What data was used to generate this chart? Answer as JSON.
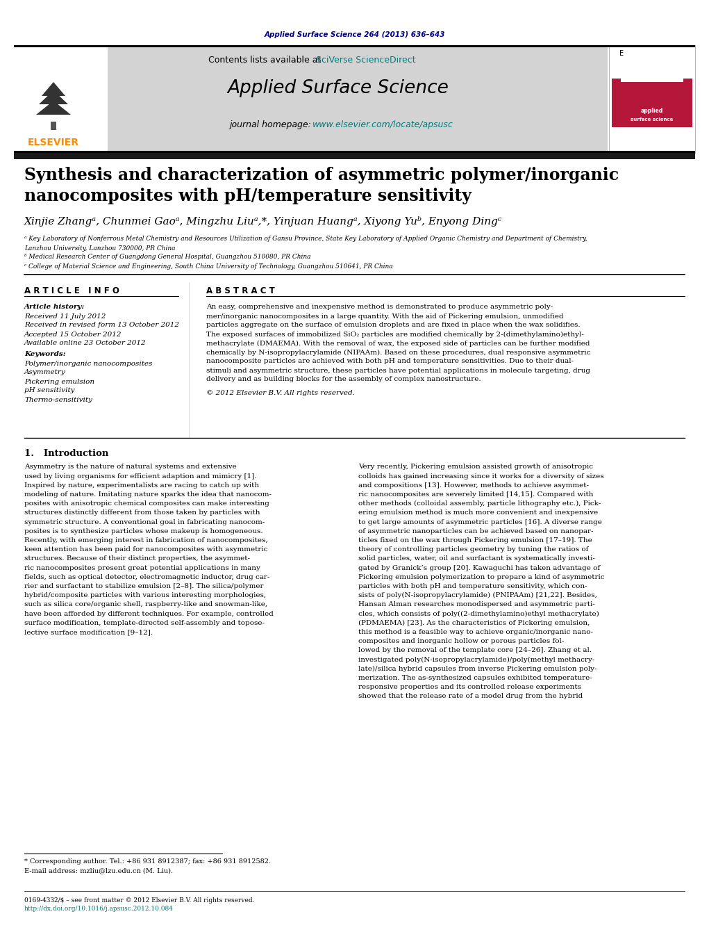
{
  "page_bg": "#ffffff",
  "top_citation": "Applied Surface Science 264 (2013) 636–643",
  "top_citation_color": "#00008B",
  "header_bg": "#d3d3d3",
  "contents_text": "Contents lists available at ",
  "sciverse_text": "SciVerse ScienceDirect",
  "sciverse_color": "#007b7b",
  "journal_title": "Applied Surface Science",
  "journal_homepage_prefix": "journal homepage: ",
  "journal_url": "www.elsevier.com/locate/apsusc",
  "journal_url_color": "#007b7b",
  "article_title_line1": "Synthesis and characterization of asymmetric polymer/inorganic",
  "article_title_line2": "nanocomposites with pH/temperature sensitivity",
  "authors": "Xinjie Zhangᵃ, Chunmei Gaoᵃ, Mingzhu Liuᵃ,*, Yinjuan Huangᵃ, Xiyong Yuᵇ, Enyong Dingᶜ",
  "affil_a": "ᵃ Key Laboratory of Nonferrous Metal Chemistry and Resources Utilization of Gansu Province, State Key Laboratory of Applied Organic Chemistry and Department of Chemistry,",
  "affil_a2": "Lanzhou University, Lanzhou 730000, PR China",
  "affil_b": "ᵇ Medical Research Center of Guangdong General Hospital, Guangzhou 510080, PR China",
  "affil_c": "ᶜ College of Material Science and Engineering, South China University of Technology, Guangzhou 510641, PR China",
  "article_info_title": "A R T I C L E   I N F O",
  "abstract_title": "A B S T R A C T",
  "article_history_label": "Article history:",
  "received": "Received 11 July 2012",
  "received_revised": "Received in revised form 13 October 2012",
  "accepted": "Accepted 15 October 2012",
  "available": "Available online 23 October 2012",
  "keywords_label": "Keywords:",
  "keyword1": "Polymer/inorganic nanocomposites",
  "keyword2": "Asymmetry",
  "keyword3": "Pickering emulsion",
  "keyword4": "pH sensitivity",
  "keyword5": "Thermo-sensitivity",
  "copyright": "© 2012 Elsevier B.V. All rights reserved.",
  "intro_title": "1.   Introduction",
  "footnote_star": "* Corresponding author. Tel.: +86 931 8912387; fax: +86 931 8912582.",
  "footnote_email": "E-mail address: mzliu@lzu.edu.cn (M. Liu).",
  "issn_line": "0169-4332/$ – see front matter © 2012 Elsevier B.V. All rights reserved.",
  "doi_line": "http://dx.doi.org/10.1016/j.apsusc.2012.10.084",
  "elsevier_color": "#FF8C00",
  "dark_bar_color": "#1a1a1a",
  "abstract_lines": [
    "An easy, comprehensive and inexpensive method is demonstrated to produce asymmetric poly-",
    "mer/inorganic nanocomposites in a large quantity. With the aid of Pickering emulsion, unmodified",
    "particles aggregate on the surface of emulsion droplets and are fixed in place when the wax solidifies.",
    "The exposed surfaces of immobilized SiO₂ particles are modified chemically by 2-(dimethylamino)ethyl-",
    "methacrylate (DMAEMA). With the removal of wax, the exposed side of particles can be further modified",
    "chemically by N-isopropylacrylamide (NIPAAm). Based on these procedures, dual responsive asymmetric",
    "nanocomposite particles are achieved with both pH and temperature sensitivities. Due to their dual-",
    "stimuli and asymmetric structure, these particles have potential applications in molecule targeting, drug",
    "delivery and as building blocks for the assembly of complex nanostructure."
  ],
  "intro_col1_lines": [
    "Asymmetry is the nature of natural systems and extensive",
    "used by living organisms for efficient adaption and mimicry [1].",
    "Inspired by nature, experimentalists are racing to catch up with",
    "modeling of nature. Imitating nature sparks the idea that nanocom-",
    "posites with anisotropic chemical composites can make interesting",
    "structures distinctly different from those taken by particles with",
    "symmetric structure. A conventional goal in fabricating nanocom-",
    "posites is to synthesize particles whose makeup is homogeneous.",
    "Recently, with emerging interest in fabrication of nanocomposites,",
    "keen attention has been paid for nanocomposites with asymmetric",
    "structures. Because of their distinct properties, the asymmet-",
    "ric nanocomposites present great potential applications in many",
    "fields, such as optical detector, electromagnetic inductor, drug car-",
    "rier and surfactant to stabilize emulsion [2–8]. The silica/polymer",
    "hybrid/composite particles with various interesting morphologies,",
    "such as silica core/organic shell, raspberry-like and snowman-like,",
    "have been afforded by different techniques. For example, controlled",
    "surface modification, template-directed self-assembly and topose-",
    "lective surface modification [9–12]."
  ],
  "intro_col2_lines": [
    "Very recently, Pickering emulsion assisted growth of anisotropic",
    "colloids has gained increasing since it works for a diversity of sizes",
    "and compositions [13]. However, methods to achieve asymmet-",
    "ric nanocomposites are severely limited [14,15]. Compared with",
    "other methods (colloidal assembly, particle lithography etc.), Pick-",
    "ering emulsion method is much more convenient and inexpensive",
    "to get large amounts of asymmetric particles [16]. A diverse range",
    "of asymmetric nanoparticles can be achieved based on nanopar-",
    "ticles fixed on the wax through Pickering emulsion [17–19]. The",
    "theory of controlling particles geometry by tuning the ratios of",
    "solid particles, water, oil and surfactant is systematically investi-",
    "gated by Granick’s group [20]. Kawaguchi has taken advantage of",
    "Pickering emulsion polymerization to prepare a kind of asymmetric",
    "particles with both pH and temperature sensitivity, which con-",
    "sists of poly(N-isopropylacrylamide) (PNIPAAm) [21,22]. Besides,",
    "Hansan Alman researches monodispersed and asymmetric parti-",
    "cles, which consists of poly((2-dimethylamino)ethyl methacrylate)",
    "(PDMAEMA) [23]. As the characteristics of Pickering emulsion,",
    "this method is a feasible way to achieve organic/inorganic nano-",
    "composites and inorganic hollow or porous particles fol-",
    "lowed by the removal of the template core [24–26]. Zhang et al.",
    "investigated poly(N-isopropylacrylamide)/poly(methyl methacry-",
    "late)/silica hybrid capsules from inverse Pickering emulsion poly-",
    "merization. The as-synthesized capsules exhibited temperature-",
    "responsive properties and its controlled release experiments",
    "showed that the release rate of a model drug from the hybrid"
  ]
}
